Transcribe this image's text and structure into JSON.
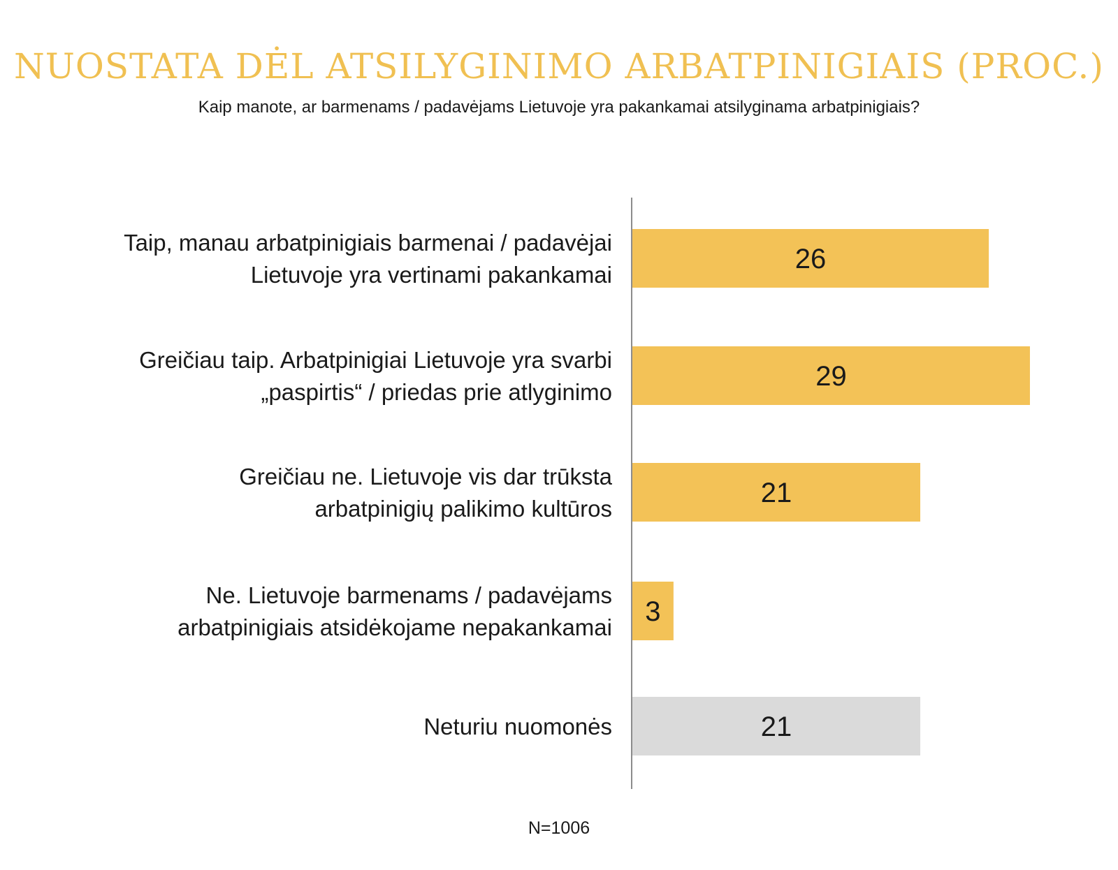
{
  "chart_data": {
    "type": "bar",
    "orientation": "horizontal",
    "title": "NUOSTATA DĖL ATSILYGINIMO ARBATPINIGIAIS (PROC.)",
    "subtitle": "Kaip manote, ar barmenams / padavėjams Lietuvoje yra pakankamai atsilyginama arbatpinigiais?",
    "categories": [
      [
        "Taip, manau arbatpinigiais barmenai / padavėjai",
        "Lietuvoje yra vertinami pakankamai"
      ],
      [
        "Greičiau taip. Arbatpinigiai Lietuvoje yra svarbi",
        "„paspirtis“ / priedas prie atlyginimo"
      ],
      [
        "Greičiau ne. Lietuvoje vis dar trūksta",
        "arbatpinigių palikimo kultūros"
      ],
      [
        "Ne. Lietuvoje barmenams / padavėjams",
        "arbatpinigiais atsidėkojame nepakankamai"
      ],
      [
        "Neturiu nuomonės"
      ]
    ],
    "values": [
      26,
      29,
      21,
      3,
      21
    ],
    "value_labels": [
      "26",
      "29",
      "21",
      "3",
      "21"
    ],
    "bar_colors": [
      "#f3c257",
      "#f3c257",
      "#f3c257",
      "#f3c257",
      "#dadada"
    ],
    "xlim": [
      0,
      29
    ],
    "grid": false,
    "note": "N=1006"
  }
}
